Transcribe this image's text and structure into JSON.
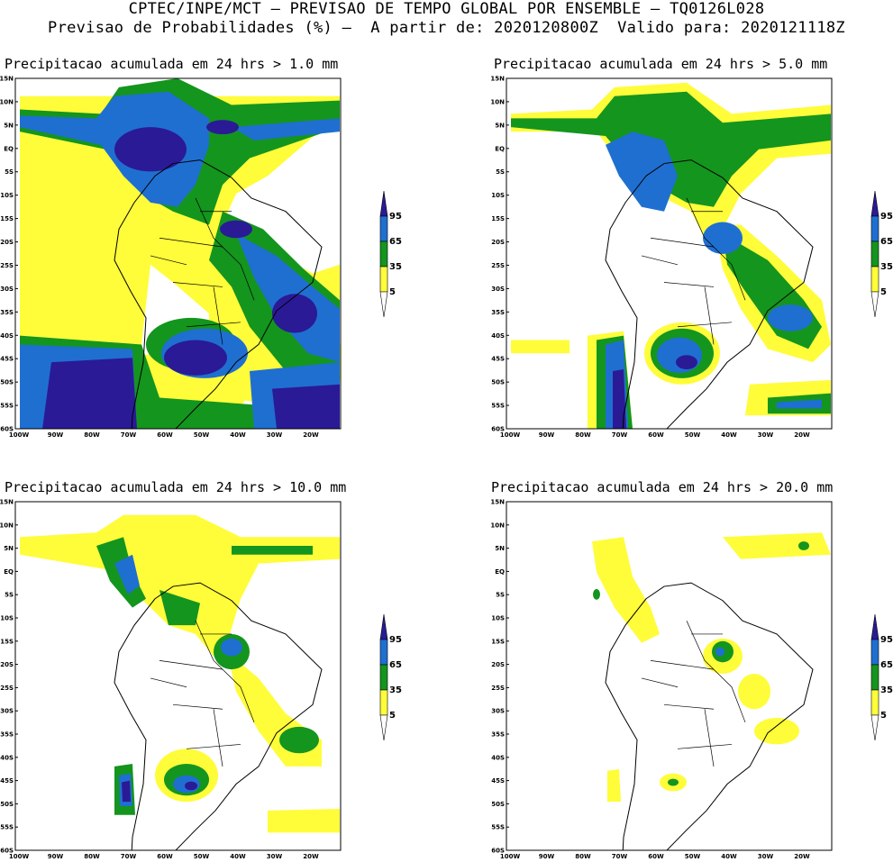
{
  "header": {
    "line1": "CPTEC/INPE/MCT — PREVISAO DE TEMPO GLOBAL POR ENSEMBLE — TQ0126L028",
    "line2": "Previsao de Probabilidades (%) —  A partir de: 2020120800Z  Valido para: 2020121118Z"
  },
  "panels": [
    {
      "title": "Precipitacao acumulada em 24 hrs > 1.0 mm"
    },
    {
      "title": "Precipitacao acumulada em 24 hrs > 5.0 mm"
    },
    {
      "title": "Precipitacao acumulada em 24 hrs > 10.0 mm"
    },
    {
      "title": "Precipitacao acumulada em 24 hrs > 20.0 mm"
    }
  ],
  "axes": {
    "lat_labels": [
      "15N",
      "10N",
      "5N",
      "EQ",
      "5S",
      "10S",
      "15S",
      "20S",
      "25S",
      "30S",
      "35S",
      "40S",
      "45S",
      "50S",
      "55S",
      "60S"
    ],
    "lon_labels": [
      "100W",
      "90W",
      "80W",
      "70W",
      "60W",
      "50W",
      "40W",
      "30W",
      "20W"
    ]
  },
  "legend": {
    "levels": [
      "95",
      "65",
      "35",
      "5"
    ],
    "colors": {
      "level_95": "#2a1a96",
      "level_65": "#1f6fd1",
      "level_35": "#14951e",
      "level_5": "#fffc3a"
    }
  }
}
